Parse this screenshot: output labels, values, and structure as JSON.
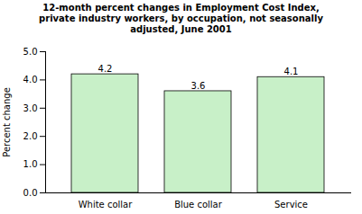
{
  "chart_data": {
    "type": "bar",
    "title": "12-month percent changes in Employment Cost Index,\nprivate industry workers, by occupation, not seasonally\nadjusted, June 2001",
    "ylabel": "Percent change",
    "categories": [
      "White collar",
      "Blue collar",
      "Service"
    ],
    "values": [
      4.2,
      3.6,
      4.1
    ],
    "color": "#c8f0c8",
    "ylim": [
      0.0,
      5.0
    ],
    "yticks": [
      {
        "value": 0.0,
        "label": "0.0"
      },
      {
        "value": 1.0,
        "label": "1.0"
      },
      {
        "value": 2.0,
        "label": "2.0"
      },
      {
        "value": 3.0,
        "label": "3.0"
      },
      {
        "value": 4.0,
        "label": "4.0"
      },
      {
        "value": 5.0,
        "label": "5.0"
      }
    ],
    "data_labels": true,
    "grid": false
  }
}
